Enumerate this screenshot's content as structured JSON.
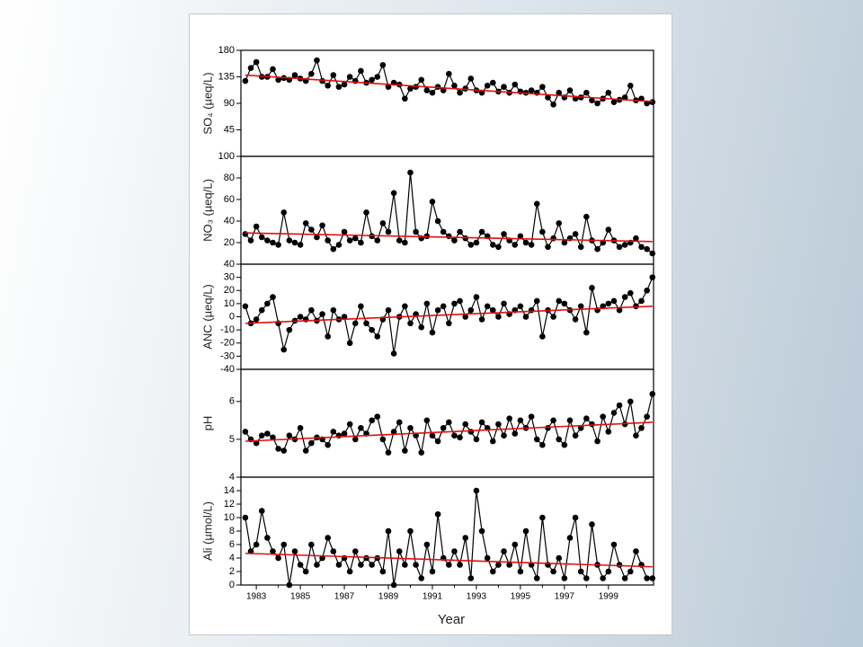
{
  "chart_data": {
    "type": "line",
    "xlabel": "Year",
    "xlim": [
      1982.3,
      2001.05
    ],
    "xticks": [
      1983,
      1985,
      1987,
      1989,
      1991,
      1993,
      1995,
      1997,
      1999
    ],
    "x": [
      1982.5,
      1982.75,
      1983,
      1983.25,
      1983.5,
      1983.75,
      1984,
      1984.25,
      1984.5,
      1984.75,
      1985,
      1985.25,
      1985.5,
      1985.75,
      1986,
      1986.25,
      1986.5,
      1986.75,
      1987,
      1987.25,
      1987.5,
      1987.75,
      1988,
      1988.25,
      1988.5,
      1988.75,
      1989,
      1989.25,
      1989.5,
      1989.75,
      1990,
      1990.25,
      1990.5,
      1990.75,
      1991,
      1991.25,
      1991.5,
      1991.75,
      1992,
      1992.25,
      1992.5,
      1992.75,
      1993,
      1993.25,
      1993.5,
      1993.75,
      1994,
      1994.25,
      1994.5,
      1994.75,
      1995,
      1995.25,
      1995.5,
      1995.75,
      1996,
      1996.25,
      1996.5,
      1996.75,
      1997,
      1997.25,
      1997.5,
      1997.75,
      1998,
      1998.25,
      1998.5,
      1998.75,
      1999,
      1999.25,
      1999.5,
      1999.75,
      2000,
      2000.25,
      2000.5,
      2000.75,
      2001
    ],
    "panels": [
      {
        "ylabel": "SO₄ (µeq/L)",
        "ylim": [
          0,
          180
        ],
        "yticks": [
          45,
          90,
          135,
          180
        ],
        "color": "#000000",
        "values": [
          128,
          150,
          160,
          135,
          135,
          148,
          130,
          133,
          130,
          138,
          132,
          128,
          140,
          163,
          128,
          120,
          138,
          118,
          122,
          135,
          128,
          145,
          125,
          130,
          135,
          155,
          118,
          125,
          122,
          98,
          115,
          118,
          130,
          112,
          108,
          118,
          112,
          140,
          120,
          108,
          115,
          132,
          112,
          108,
          120,
          125,
          110,
          118,
          108,
          122,
          110,
          108,
          112,
          108,
          118,
          100,
          88,
          108,
          100,
          112,
          98,
          100,
          108,
          95,
          90,
          98,
          108,
          92,
          96,
          100,
          120,
          95,
          98,
          90,
          92
        ],
        "trend": {
          "x": [
            1982.5,
            2001
          ],
          "values": [
            138,
            93
          ],
          "color": "#e01010"
        }
      },
      {
        "ylabel": "NO₃ (µeq/L)",
        "ylim": [
          0,
          100
        ],
        "yticks": [
          20,
          40,
          60,
          80,
          100
        ],
        "color": "#000000",
        "values": [
          28,
          22,
          35,
          25,
          22,
          20,
          18,
          48,
          22,
          20,
          18,
          38,
          32,
          25,
          36,
          22,
          14,
          18,
          30,
          22,
          24,
          20,
          48,
          26,
          22,
          38,
          30,
          66,
          22,
          20,
          85,
          30,
          24,
          26,
          58,
          40,
          30,
          26,
          22,
          30,
          24,
          18,
          20,
          30,
          26,
          18,
          16,
          28,
          22,
          18,
          26,
          20,
          18,
          56,
          30,
          16,
          24,
          38,
          20,
          24,
          28,
          16,
          44,
          22,
          14,
          20,
          32,
          22,
          16,
          18,
          20,
          24,
          16,
          14,
          10
        ],
        "trend": {
          "x": [
            1982.5,
            2001
          ],
          "values": [
            29,
            21
          ],
          "color": "#e01010"
        }
      },
      {
        "ylabel": "ANC (µeq/L)",
        "ylim": [
          -40,
          40
        ],
        "yticks": [
          -40,
          -30,
          -20,
          -10,
          0,
          10,
          20,
          30,
          40
        ],
        "color": "#000000",
        "values": [
          8,
          -5,
          -2,
          5,
          10,
          15,
          -5,
          -25,
          -10,
          -3,
          0,
          -2,
          5,
          -3,
          2,
          -15,
          5,
          -2,
          0,
          -20,
          -5,
          8,
          -5,
          -10,
          -15,
          -2,
          5,
          -28,
          0,
          8,
          -5,
          2,
          -8,
          10,
          -12,
          5,
          8,
          -5,
          10,
          12,
          0,
          5,
          15,
          -2,
          8,
          5,
          0,
          10,
          2,
          5,
          8,
          0,
          5,
          12,
          -15,
          5,
          0,
          12,
          10,
          5,
          -2,
          8,
          -12,
          22,
          5,
          8,
          10,
          12,
          5,
          15,
          18,
          8,
          12,
          20,
          30
        ],
        "trend": {
          "x": [
            1982.5,
            2001
          ],
          "values": [
            -5,
            8
          ],
          "color": "#e01010"
        }
      },
      {
        "ylabel": "pH",
        "ylim": [
          4,
          6.85
        ],
        "yticks": [
          4,
          5,
          6
        ],
        "color": "#000000",
        "values": [
          5.2,
          5.0,
          4.9,
          5.1,
          5.15,
          5.05,
          4.75,
          4.7,
          5.1,
          5.0,
          5.3,
          4.7,
          4.9,
          5.05,
          5.0,
          4.85,
          5.2,
          5.1,
          5.15,
          5.4,
          5.0,
          5.3,
          5.15,
          5.5,
          5.6,
          5.0,
          4.65,
          5.2,
          5.45,
          4.7,
          5.3,
          5.1,
          4.65,
          5.5,
          5.1,
          4.95,
          5.3,
          5.45,
          5.1,
          5.05,
          5.4,
          5.2,
          5.0,
          5.45,
          5.3,
          4.95,
          5.4,
          5.1,
          5.55,
          5.15,
          5.5,
          5.3,
          5.6,
          5.0,
          4.85,
          5.3,
          5.5,
          5.0,
          4.85,
          5.5,
          5.1,
          5.3,
          5.55,
          5.4,
          4.95,
          5.6,
          5.2,
          5.7,
          5.9,
          5.4,
          6.0,
          5.1,
          5.3,
          5.6,
          6.2
        ],
        "trend": {
          "x": [
            1982.5,
            2001
          ],
          "values": [
            4.95,
            5.45
          ],
          "color": "#e01010"
        }
      },
      {
        "ylabel": "Ali (µmol/L)",
        "ylim": [
          0,
          16
        ],
        "yticks": [
          0,
          2,
          4,
          6,
          8,
          10,
          12,
          14
        ],
        "color": "#000000",
        "values": [
          10,
          5,
          6,
          11,
          7,
          5,
          4,
          6,
          0,
          5,
          3,
          2,
          6,
          3,
          4,
          7,
          5,
          3,
          4,
          2,
          5,
          3,
          4,
          3,
          4,
          2,
          8,
          0,
          5,
          3,
          8,
          3,
          1,
          6,
          2,
          10.5,
          4,
          3,
          5,
          3,
          7,
          1,
          14,
          8,
          4,
          2,
          3,
          5,
          3,
          6,
          2,
          8,
          3,
          1,
          10,
          3,
          2,
          4,
          1,
          7,
          10,
          2,
          1,
          9,
          3,
          1,
          2,
          6,
          3,
          1,
          2,
          5,
          3,
          1,
          1
        ],
        "trend": {
          "x": [
            1982.5,
            2001
          ],
          "values": [
            4.7,
            2.7
          ],
          "color": "#e01010"
        }
      }
    ]
  }
}
